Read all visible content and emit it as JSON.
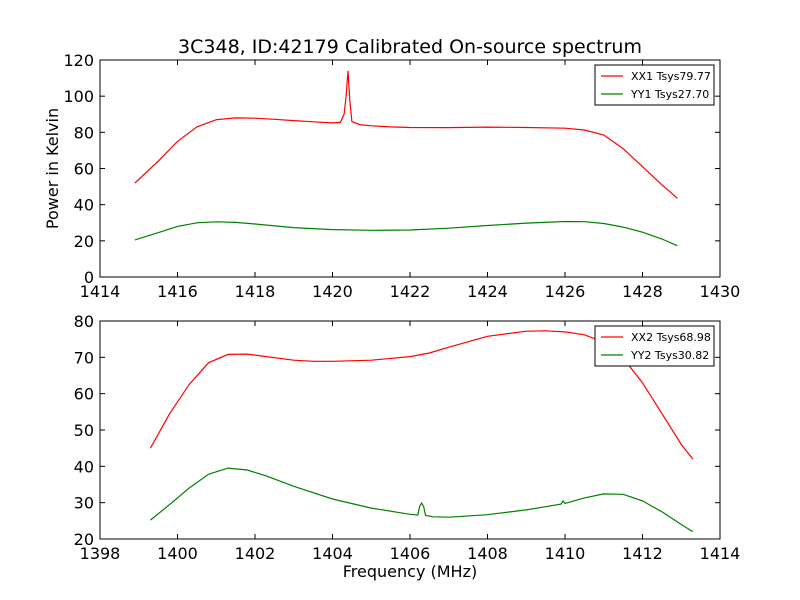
{
  "title": "3C348, ID:42179 Calibrated On-source spectrum",
  "chart_data": [
    {
      "type": "line",
      "ylabel": "Power in Kelvin",
      "xlabel": "",
      "xlim": [
        1414,
        1430
      ],
      "ylim": [
        0,
        120
      ],
      "xticks": [
        "1414",
        "1416",
        "1418",
        "1420",
        "1422",
        "1424",
        "1426",
        "1428",
        "1430"
      ],
      "yticks": [
        "0",
        "20",
        "40",
        "60",
        "80",
        "100",
        "120"
      ],
      "legend_position": "top-right",
      "grid": false,
      "series": [
        {
          "name": "XX1 Tsys79.77",
          "color": "#ff0000",
          "x": [
            1414.9,
            1415.5,
            1416.0,
            1416.5,
            1417.0,
            1417.5,
            1418.0,
            1418.5,
            1419.0,
            1419.5,
            1420.0,
            1420.2,
            1420.3,
            1420.35,
            1420.4,
            1420.45,
            1420.5,
            1420.7,
            1421.0,
            1421.5,
            1422.0,
            1423.0,
            1424.0,
            1425.0,
            1426.0,
            1426.5,
            1427.0,
            1427.5,
            1428.0,
            1428.5,
            1428.9
          ],
          "y": [
            52,
            64,
            75,
            83,
            87,
            88,
            87.8,
            87.2,
            86.5,
            85.8,
            85.2,
            85.5,
            90,
            100,
            114,
            97,
            86,
            84.3,
            83.6,
            83.0,
            82.7,
            82.6,
            82.9,
            82.7,
            82.3,
            81.3,
            78.5,
            71,
            61,
            51,
            43.5
          ]
        },
        {
          "name": "YY1 Tsys27.70",
          "color": "#008000",
          "x": [
            1414.9,
            1415.5,
            1416.0,
            1416.5,
            1417.0,
            1417.5,
            1418.0,
            1419.0,
            1420.0,
            1421.0,
            1422.0,
            1423.0,
            1424.0,
            1425.0,
            1426.0,
            1426.5,
            1427.0,
            1427.5,
            1428.0,
            1428.5,
            1428.9
          ],
          "y": [
            20.5,
            24.5,
            28.0,
            30.0,
            30.5,
            30.2,
            29.3,
            27.3,
            26.2,
            25.8,
            26.0,
            27.0,
            28.5,
            29.8,
            30.7,
            30.6,
            29.6,
            27.6,
            24.8,
            21.0,
            17.3
          ]
        }
      ]
    },
    {
      "type": "line",
      "xlabel": "Frequency (MHz)",
      "ylabel": "",
      "xlim": [
        1398,
        1414
      ],
      "ylim": [
        20,
        80
      ],
      "xticks": [
        "1398",
        "1400",
        "1402",
        "1404",
        "1406",
        "1408",
        "1410",
        "1412",
        "1414"
      ],
      "yticks": [
        "20",
        "30",
        "40",
        "50",
        "60",
        "70",
        "80"
      ],
      "legend_position": "top-right",
      "grid": false,
      "series": [
        {
          "name": "XX2 Tsys68.98",
          "color": "#ff0000",
          "x": [
            1399.3,
            1399.8,
            1400.3,
            1400.8,
            1401.3,
            1401.8,
            1402.3,
            1403.0,
            1403.5,
            1404.0,
            1405.0,
            1406.0,
            1406.5,
            1407.0,
            1408.0,
            1409.0,
            1409.5,
            1410.0,
            1410.5,
            1411.0,
            1411.5,
            1412.0,
            1412.5,
            1413.0,
            1413.3
          ],
          "y": [
            45,
            54.5,
            62.5,
            68.5,
            70.8,
            70.9,
            70.2,
            69.2,
            68.9,
            68.9,
            69.2,
            70.2,
            71.2,
            72.8,
            75.8,
            77.2,
            77.3,
            77.0,
            76.2,
            74.2,
            69.8,
            63.0,
            54.5,
            46.0,
            42.0
          ]
        },
        {
          "name": "YY2 Tsys30.82",
          "color": "#008000",
          "x": [
            1399.3,
            1399.8,
            1400.3,
            1400.8,
            1401.3,
            1401.8,
            1402.3,
            1403.0,
            1404.0,
            1405.0,
            1406.0,
            1406.2,
            1406.25,
            1406.3,
            1406.35,
            1406.4,
            1406.6,
            1407.0,
            1408.0,
            1409.0,
            1409.9,
            1409.95,
            1410.0,
            1410.5,
            1411.0,
            1411.5,
            1412.0,
            1412.5,
            1413.0,
            1413.3
          ],
          "y": [
            25.2,
            29.5,
            34.0,
            37.8,
            39.5,
            39.0,
            37.3,
            34.5,
            31.0,
            28.5,
            26.8,
            26.6,
            29.0,
            29.9,
            29.0,
            26.5,
            26.1,
            26.0,
            26.7,
            28.0,
            29.6,
            30.5,
            29.8,
            31.3,
            32.4,
            32.3,
            30.5,
            27.5,
            24.0,
            22.0
          ]
        }
      ]
    }
  ]
}
